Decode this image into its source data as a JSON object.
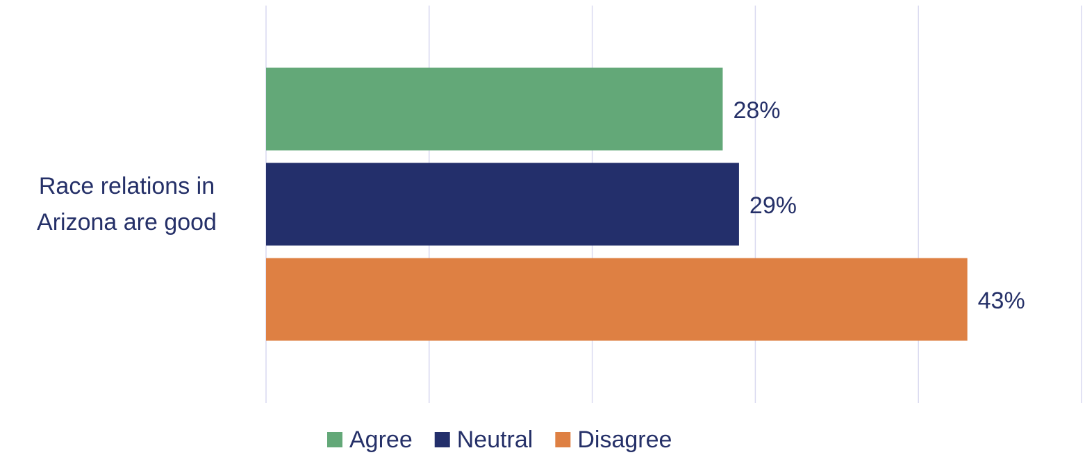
{
  "chart_data": {
    "type": "hbar",
    "categories": [
      "Race relations in Arizona are good"
    ],
    "series": [
      {
        "name": "Agree",
        "color": "#63a878",
        "values": [
          28
        ],
        "value_labels": [
          "28%"
        ]
      },
      {
        "name": "Neutral",
        "color": "#232f6b",
        "values": [
          29
        ],
        "value_labels": [
          "29%"
        ]
      },
      {
        "name": "Disagree",
        "color": "#de8043",
        "values": [
          43
        ],
        "value_labels": [
          "43%"
        ]
      }
    ],
    "xlim": [
      0,
      50
    ],
    "xticks": [
      0,
      10,
      20,
      30,
      40,
      50
    ],
    "grid": true,
    "legend": "bottom"
  }
}
